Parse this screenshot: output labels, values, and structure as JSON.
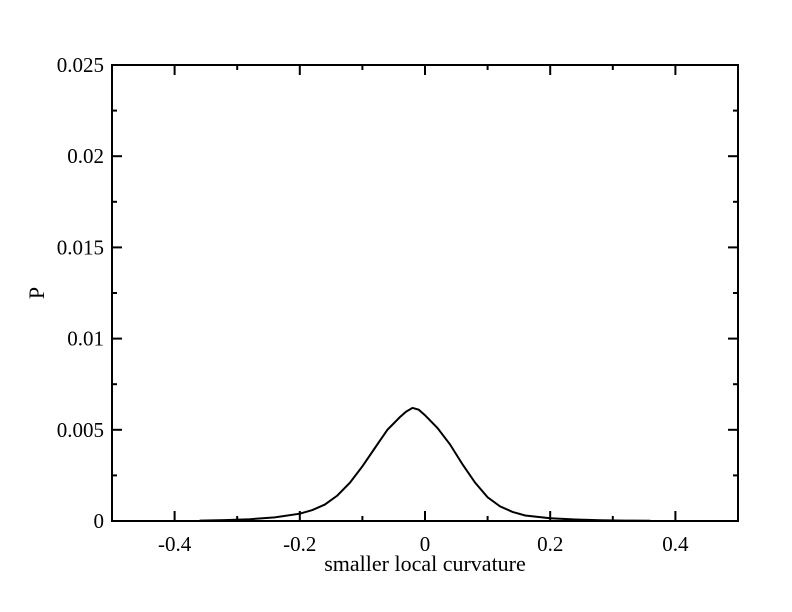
{
  "chart_data": {
    "type": "line",
    "title": "",
    "xlabel": "smaller local curvature",
    "ylabel": "P",
    "xlim": [
      -0.5,
      0.5
    ],
    "ylim": [
      0,
      0.025
    ],
    "x_ticks": [
      -0.4,
      -0.2,
      0,
      0.2,
      0.4
    ],
    "x_tick_labels": [
      "-0.4",
      "-0.2",
      "0",
      "0.2",
      "0.4"
    ],
    "y_ticks": [
      0,
      0.005,
      0.01,
      0.015,
      0.02,
      0.025
    ],
    "y_tick_labels": [
      "0",
      "0.005",
      "0.01",
      "0.015",
      "0.02",
      "0.025"
    ],
    "grid": false,
    "series": [
      {
        "color": "#000000",
        "x": [
          -0.36,
          -0.32,
          -0.28,
          -0.24,
          -0.2,
          -0.18,
          -0.16,
          -0.14,
          -0.12,
          -0.1,
          -0.08,
          -0.06,
          -0.04,
          -0.03,
          -0.02,
          -0.01,
          0.0,
          0.02,
          0.04,
          0.06,
          0.08,
          0.1,
          0.12,
          0.14,
          0.16,
          0.2,
          0.24,
          0.28,
          0.32,
          0.36
        ],
        "y": [
          2e-05,
          5e-05,
          0.0001,
          0.0002,
          0.0004,
          0.0006,
          0.0009,
          0.0014,
          0.0021,
          0.003,
          0.004,
          0.005,
          0.0057,
          0.006,
          0.0062,
          0.0061,
          0.0058,
          0.0051,
          0.0042,
          0.0031,
          0.0021,
          0.0013,
          0.0008,
          0.0005,
          0.0003,
          0.00015,
          8e-05,
          4e-05,
          2e-05,
          1e-05
        ]
      }
    ]
  }
}
